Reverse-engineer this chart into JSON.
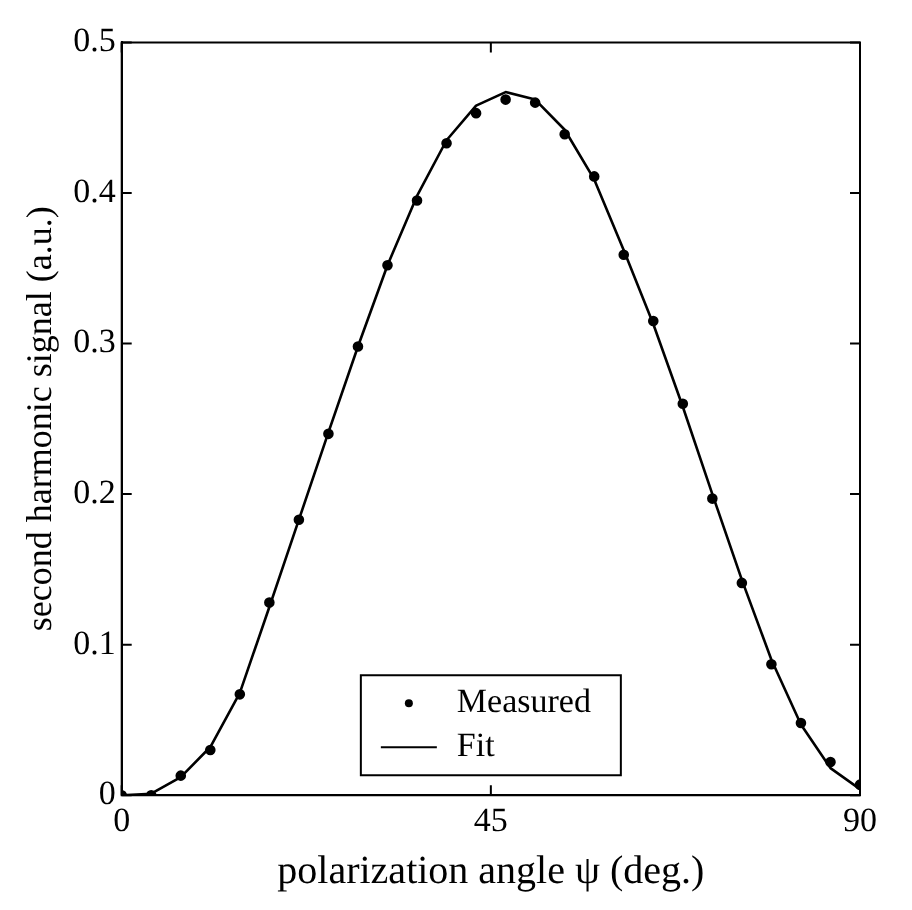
{
  "chart_data": {
    "type": "scatter",
    "xlabel": "polarization angle ψ (deg.)",
    "ylabel": "second harmonic signal (a.u.)",
    "xlim": [
      0,
      90
    ],
    "xticks": [
      0,
      45,
      90
    ],
    "ylim": [
      0,
      0.5
    ],
    "yticks": [
      0,
      0.1,
      0.2,
      0.3,
      0.4,
      0.5
    ],
    "grid": false,
    "legend": "bottom",
    "marker": "circle",
    "series": [
      {
        "name": "Measured",
        "type": "scatter",
        "color": "#000000",
        "x": [
          0,
          3.6,
          7.2,
          10.8,
          14.4,
          18,
          21.6,
          25.2,
          28.8,
          32.4,
          36,
          39.6,
          43.2,
          46.8,
          50.4,
          54,
          57.6,
          61.2,
          64.8,
          68.4,
          72,
          75.6,
          79.2,
          82.8,
          86.4,
          90
        ],
        "values": [
          0,
          0,
          0.013,
          0.03,
          0.067,
          0.128,
          0.183,
          0.24,
          0.298,
          0.352,
          0.395,
          0.433,
          0.453,
          0.462,
          0.46,
          0.439,
          0.411,
          0.359,
          0.315,
          0.26,
          0.197,
          0.141,
          0.087,
          0.048,
          0.022,
          0.007
        ]
      },
      {
        "name": "Fit",
        "type": "line",
        "color": "#000000",
        "marker": "none",
        "line_style": "solid",
        "x": [
          0,
          3.6,
          7.2,
          10.8,
          14.4,
          18,
          21.6,
          25.2,
          28.8,
          32.4,
          36,
          39.6,
          43.2,
          46.8,
          50.4,
          54,
          57.6,
          61.2,
          64.8,
          68.4,
          72,
          75.6,
          79.2,
          82.8,
          86.4,
          90
        ],
        "values": [
          0,
          0.001,
          0.012,
          0.032,
          0.068,
          0.125,
          0.183,
          0.241,
          0.298,
          0.352,
          0.398,
          0.435,
          0.458,
          0.467,
          0.462,
          0.442,
          0.409,
          0.362,
          0.313,
          0.258,
          0.2,
          0.143,
          0.09,
          0.047,
          0.018,
          0.004
        ]
      }
    ]
  }
}
